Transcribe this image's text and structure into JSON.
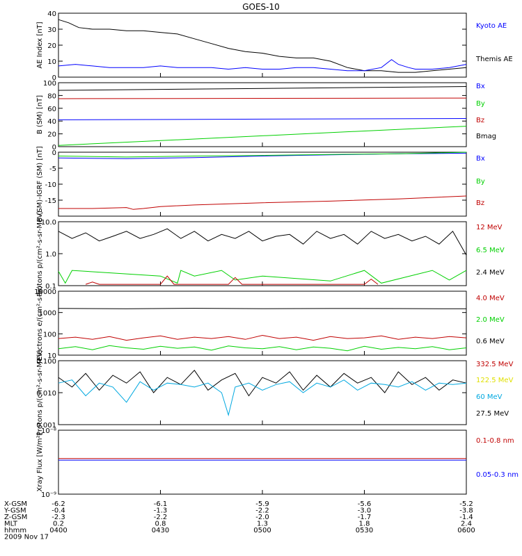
{
  "title": "GOES-10",
  "colors": {
    "black": "#000000",
    "blue": "#0000ff",
    "green": "#00d000",
    "red": "#c00000",
    "cyan": "#00a8e0",
    "yellow": "#e0e000"
  },
  "chart_data": [
    {
      "type": "line",
      "ylabel": "AE Index [nT]",
      "ylim": [
        0,
        40
      ],
      "yscale": "linear",
      "yticks": [
        "0",
        "10",
        "20",
        "30",
        "40"
      ],
      "ytick_values": [
        0,
        10,
        20,
        30,
        40
      ],
      "legend": [
        {
          "label": "Kyoto AE",
          "color": "blue"
        },
        {
          "label": "Themis AE",
          "color": "black"
        }
      ],
      "series": [
        {
          "name": "Themis AE",
          "color": "black",
          "x": [
            0,
            3,
            6,
            10,
            15,
            20,
            25,
            30,
            35,
            40,
            45,
            50,
            55,
            60,
            65,
            70,
            75,
            80,
            85,
            90,
            95,
            100,
            105,
            110,
            115,
            120
          ],
          "values": [
            36,
            34,
            31,
            30,
            30,
            29,
            29,
            28,
            27,
            24,
            21,
            18,
            16,
            15,
            13,
            12,
            12,
            10,
            6,
            4,
            4,
            3,
            3,
            4,
            5,
            6
          ]
        },
        {
          "name": "Kyoto AE",
          "color": "blue",
          "x": [
            0,
            5,
            10,
            15,
            20,
            25,
            30,
            35,
            40,
            45,
            50,
            55,
            60,
            65,
            70,
            75,
            80,
            85,
            90,
            95,
            98,
            100,
            103,
            105,
            110,
            115,
            120
          ],
          "values": [
            7,
            8,
            7,
            6,
            6,
            6,
            7,
            6,
            6,
            6,
            5,
            6,
            5,
            5,
            6,
            6,
            5,
            4,
            4,
            6,
            11,
            8,
            6,
            5,
            5,
            6,
            8
          ]
        }
      ]
    },
    {
      "type": "line",
      "ylabel": "B (SM) [nT]",
      "ylim": [
        0,
        100
      ],
      "yscale": "linear",
      "yticks": [
        "0",
        "20",
        "40",
        "60",
        "80",
        "100"
      ],
      "ytick_values": [
        0,
        20,
        40,
        60,
        80,
        100
      ],
      "legend": [
        {
          "label": "Bx",
          "color": "blue"
        },
        {
          "label": "By",
          "color": "green"
        },
        {
          "label": "Bz",
          "color": "red"
        },
        {
          "label": "Bmag",
          "color": "black"
        }
      ],
      "series": [
        {
          "name": "Bmag",
          "color": "black",
          "x": [
            0,
            120
          ],
          "values": [
            88,
            94
          ]
        },
        {
          "name": "Bz",
          "color": "red",
          "x": [
            0,
            120
          ],
          "values": [
            75,
            76
          ]
        },
        {
          "name": "Bx",
          "color": "blue",
          "x": [
            0,
            120
          ],
          "values": [
            42,
            44
          ]
        },
        {
          "name": "By",
          "color": "green",
          "x": [
            0,
            120
          ],
          "values": [
            2,
            32
          ]
        }
      ]
    },
    {
      "type": "line",
      "ylabel": "B (SM)-IGRF (SM) [nT]",
      "ylim": [
        -20,
        0
      ],
      "yscale": "linear",
      "yticks": [
        "-15",
        "-10",
        "-5",
        "0"
      ],
      "ytick_values": [
        -15,
        -10,
        -5,
        0
      ],
      "legend": [
        {
          "label": "Bx",
          "color": "blue"
        },
        {
          "label": "By",
          "color": "green"
        },
        {
          "label": "Bz",
          "color": "red"
        }
      ],
      "series": [
        {
          "name": "Bx",
          "color": "blue",
          "x": [
            0,
            20,
            40,
            60,
            80,
            100,
            120
          ],
          "values": [
            -1.8,
            -2.0,
            -1.7,
            -1.2,
            -0.8,
            -0.5,
            -0.3
          ]
        },
        {
          "name": "By",
          "color": "green",
          "x": [
            0,
            20,
            40,
            60,
            80,
            100,
            120
          ],
          "values": [
            -1.2,
            -1.5,
            -1.2,
            -1.0,
            -0.7,
            -0.5,
            0.0
          ]
        },
        {
          "name": "Bz",
          "color": "red",
          "x": [
            0,
            10,
            20,
            22,
            25,
            30,
            40,
            60,
            80,
            100,
            120
          ],
          "values": [
            -17.6,
            -17.6,
            -17.3,
            -17.9,
            -17.6,
            -17.0,
            -16.5,
            -15.8,
            -15.3,
            -14.6,
            -13.7
          ]
        }
      ]
    },
    {
      "type": "line",
      "ylabel": "Protons p/(cm²-s-sr-MeV)",
      "ylim": [
        0.1,
        10
      ],
      "yscale": "log",
      "yticks": [
        "0.1",
        "1.0",
        "10.0"
      ],
      "ytick_values": [
        0.1,
        1,
        10
      ],
      "legend": [
        {
          "label": "12 MeV",
          "color": "red"
        },
        {
          "label": "6.5 MeV",
          "color": "green"
        },
        {
          "label": "2.4 MeV",
          "color": "black"
        }
      ],
      "series": [
        {
          "name": "2.4 MeV",
          "color": "black",
          "x": [
            0,
            4,
            8,
            12,
            16,
            20,
            24,
            28,
            32,
            36,
            40,
            44,
            48,
            52,
            56,
            60,
            64,
            68,
            72,
            76,
            80,
            84,
            88,
            92,
            96,
            100,
            104,
            108,
            112,
            116,
            120
          ],
          "values": [
            5,
            3,
            4.5,
            2.5,
            3.5,
            5,
            3,
            4,
            6,
            3,
            5,
            2.5,
            4,
            3,
            5,
            2.5,
            3.5,
            4,
            2,
            5,
            3,
            4,
            2,
            5,
            3,
            4,
            2.5,
            3.5,
            2,
            5,
            0.9
          ]
        },
        {
          "name": "6.5 MeV",
          "color": "green",
          "x": [
            0,
            2,
            4,
            30,
            35,
            36,
            40,
            48,
            52,
            60,
            80,
            90,
            95,
            110,
            115,
            120
          ],
          "values": [
            0.28,
            0.12,
            0.3,
            0.2,
            0.12,
            0.3,
            0.2,
            0.3,
            0.15,
            0.2,
            0.14,
            0.3,
            0.12,
            0.3,
            0.15,
            0.3
          ]
        },
        {
          "name": "12 MeV",
          "color": "red",
          "x": [
            8,
            10,
            12,
            30,
            32,
            34,
            50,
            52,
            54,
            90,
            92,
            94
          ],
          "values": [
            0.11,
            0.13,
            0.11,
            0.11,
            0.2,
            0.11,
            0.11,
            0.18,
            0.11,
            0.11,
            0.16,
            0.11
          ]
        }
      ]
    },
    {
      "type": "line",
      "ylabel": "Electrons e/(cm²-s-sr)",
      "ylim": [
        10,
        10000
      ],
      "yscale": "log",
      "yticks": [
        "10",
        "100",
        "1000",
        "10000"
      ],
      "ytick_values": [
        10,
        100,
        1000,
        10000
      ],
      "legend": [
        {
          "label": "4.0 MeV",
          "color": "red"
        },
        {
          "label": "2.0 MeV",
          "color": "green"
        },
        {
          "label": "0.6 MeV",
          "color": "black"
        }
      ],
      "series": [
        {
          "name": "0.6 MeV",
          "color": "black",
          "x": [
            0,
            20,
            40,
            60,
            80,
            100,
            120
          ],
          "values": [
            1550,
            1500,
            1580,
            1520,
            1540,
            1530,
            1500
          ]
        },
        {
          "name": "4.0 MeV",
          "color": "red",
          "x": [
            0,
            5,
            10,
            15,
            20,
            25,
            30,
            35,
            40,
            45,
            50,
            55,
            60,
            65,
            70,
            75,
            80,
            85,
            90,
            95,
            100,
            105,
            110,
            115,
            120
          ],
          "values": [
            60,
            70,
            55,
            75,
            50,
            65,
            80,
            55,
            70,
            60,
            75,
            55,
            85,
            60,
            70,
            50,
            75,
            60,
            65,
            80,
            55,
            70,
            60,
            75,
            65
          ]
        },
        {
          "name": "2.0 MeV",
          "color": "green",
          "x": [
            0,
            5,
            10,
            15,
            20,
            25,
            30,
            35,
            40,
            45,
            50,
            55,
            60,
            65,
            70,
            75,
            80,
            85,
            90,
            95,
            100,
            105,
            110,
            115,
            120
          ],
          "values": [
            20,
            25,
            18,
            28,
            22,
            19,
            26,
            21,
            24,
            17,
            27,
            22,
            20,
            25,
            18,
            24,
            21,
            16,
            26,
            19,
            23,
            20,
            25,
            18,
            22
          ]
        }
      ]
    },
    {
      "type": "line",
      "ylabel": "Protons p/(cm²-s-sr-MeV)",
      "ylim": [
        0.001,
        0.1
      ],
      "yscale": "log",
      "yticks": [
        "0.001",
        "0.010",
        "0.100"
      ],
      "ytick_values": [
        0.001,
        0.01,
        0.1
      ],
      "legend": [
        {
          "label": "332.5 MeV",
          "color": "red"
        },
        {
          "label": "122.5 MeV",
          "color": "yellow"
        },
        {
          "label": "60 MeV",
          "color": "cyan"
        },
        {
          "label": "27.5 MeV",
          "color": "black"
        }
      ],
      "series": [
        {
          "name": "27.5 MeV",
          "color": "black",
          "x": [
            0,
            4,
            8,
            12,
            16,
            20,
            24,
            28,
            32,
            36,
            40,
            44,
            48,
            52,
            56,
            60,
            64,
            68,
            72,
            76,
            80,
            84,
            88,
            92,
            96,
            100,
            104,
            108,
            112,
            116,
            120
          ],
          "values": [
            0.03,
            0.015,
            0.04,
            0.012,
            0.035,
            0.02,
            0.045,
            0.01,
            0.03,
            0.018,
            0.05,
            0.012,
            0.025,
            0.04,
            0.008,
            0.03,
            0.02,
            0.045,
            0.012,
            0.035,
            0.015,
            0.04,
            0.02,
            0.03,
            0.01,
            0.045,
            0.018,
            0.03,
            0.012,
            0.025,
            0.02
          ]
        },
        {
          "name": "60 MeV",
          "color": "cyan",
          "x": [
            0,
            4,
            8,
            12,
            16,
            20,
            24,
            28,
            32,
            36,
            40,
            44,
            48,
            50,
            52,
            56,
            60,
            64,
            68,
            72,
            76,
            80,
            84,
            88,
            92,
            96,
            100,
            104,
            108,
            112,
            116,
            120
          ],
          "values": [
            0.02,
            0.025,
            0.008,
            0.02,
            0.015,
            0.005,
            0.022,
            0.012,
            0.02,
            0.018,
            0.015,
            0.02,
            0.01,
            0.002,
            0.015,
            0.02,
            0.012,
            0.018,
            0.022,
            0.01,
            0.02,
            0.015,
            0.025,
            0.012,
            0.02,
            0.018,
            0.015,
            0.022,
            0.012,
            0.02,
            0.018,
            0.02
          ]
        }
      ]
    },
    {
      "type": "line",
      "ylabel": "Xray Flux [W/m²]",
      "ylim": [
        1e-09,
        1e-08
      ],
      "yscale": "log",
      "yticks": [
        "10⁻⁹",
        "10⁻⁸"
      ],
      "ytick_values": [
        1e-09,
        1e-08
      ],
      "legend": [
        {
          "label": "0.1-0.8 nm",
          "color": "red"
        },
        {
          "label": "0.05-0.3 nm",
          "color": "blue"
        }
      ],
      "series": [
        {
          "name": "0.1-0.8 nm",
          "color": "red",
          "x": [
            0,
            120
          ],
          "values": [
            3.6e-09,
            3.6e-09
          ]
        },
        {
          "name": "0.05-0.3 nm",
          "color": "blue",
          "x": [
            0,
            120
          ],
          "values": [
            3.4e-09,
            3.4e-09
          ]
        }
      ]
    }
  ],
  "x_axis": {
    "row_labels": [
      "X-GSM",
      "Y-GSM",
      "Z-GSM",
      "MLT",
      "hhmm"
    ],
    "tick_minutes": [
      0,
      30,
      60,
      90,
      120
    ],
    "columns": [
      [
        "-6.2",
        "-0.4",
        "-2.3",
        "0.2",
        "0400"
      ],
      [
        "-6.1",
        "-1.3",
        "-2.2",
        "0.8",
        "0430"
      ],
      [
        "-5.9",
        "-2.2",
        "-2.0",
        "1.3",
        "0500"
      ],
      [
        "-5.6",
        "-3.0",
        "-1.7",
        "1.8",
        "0530"
      ],
      [
        "-5.2",
        "-3.8",
        "-1.4",
        "2.4",
        "0600"
      ]
    ],
    "date": "2009 Nov 17"
  }
}
